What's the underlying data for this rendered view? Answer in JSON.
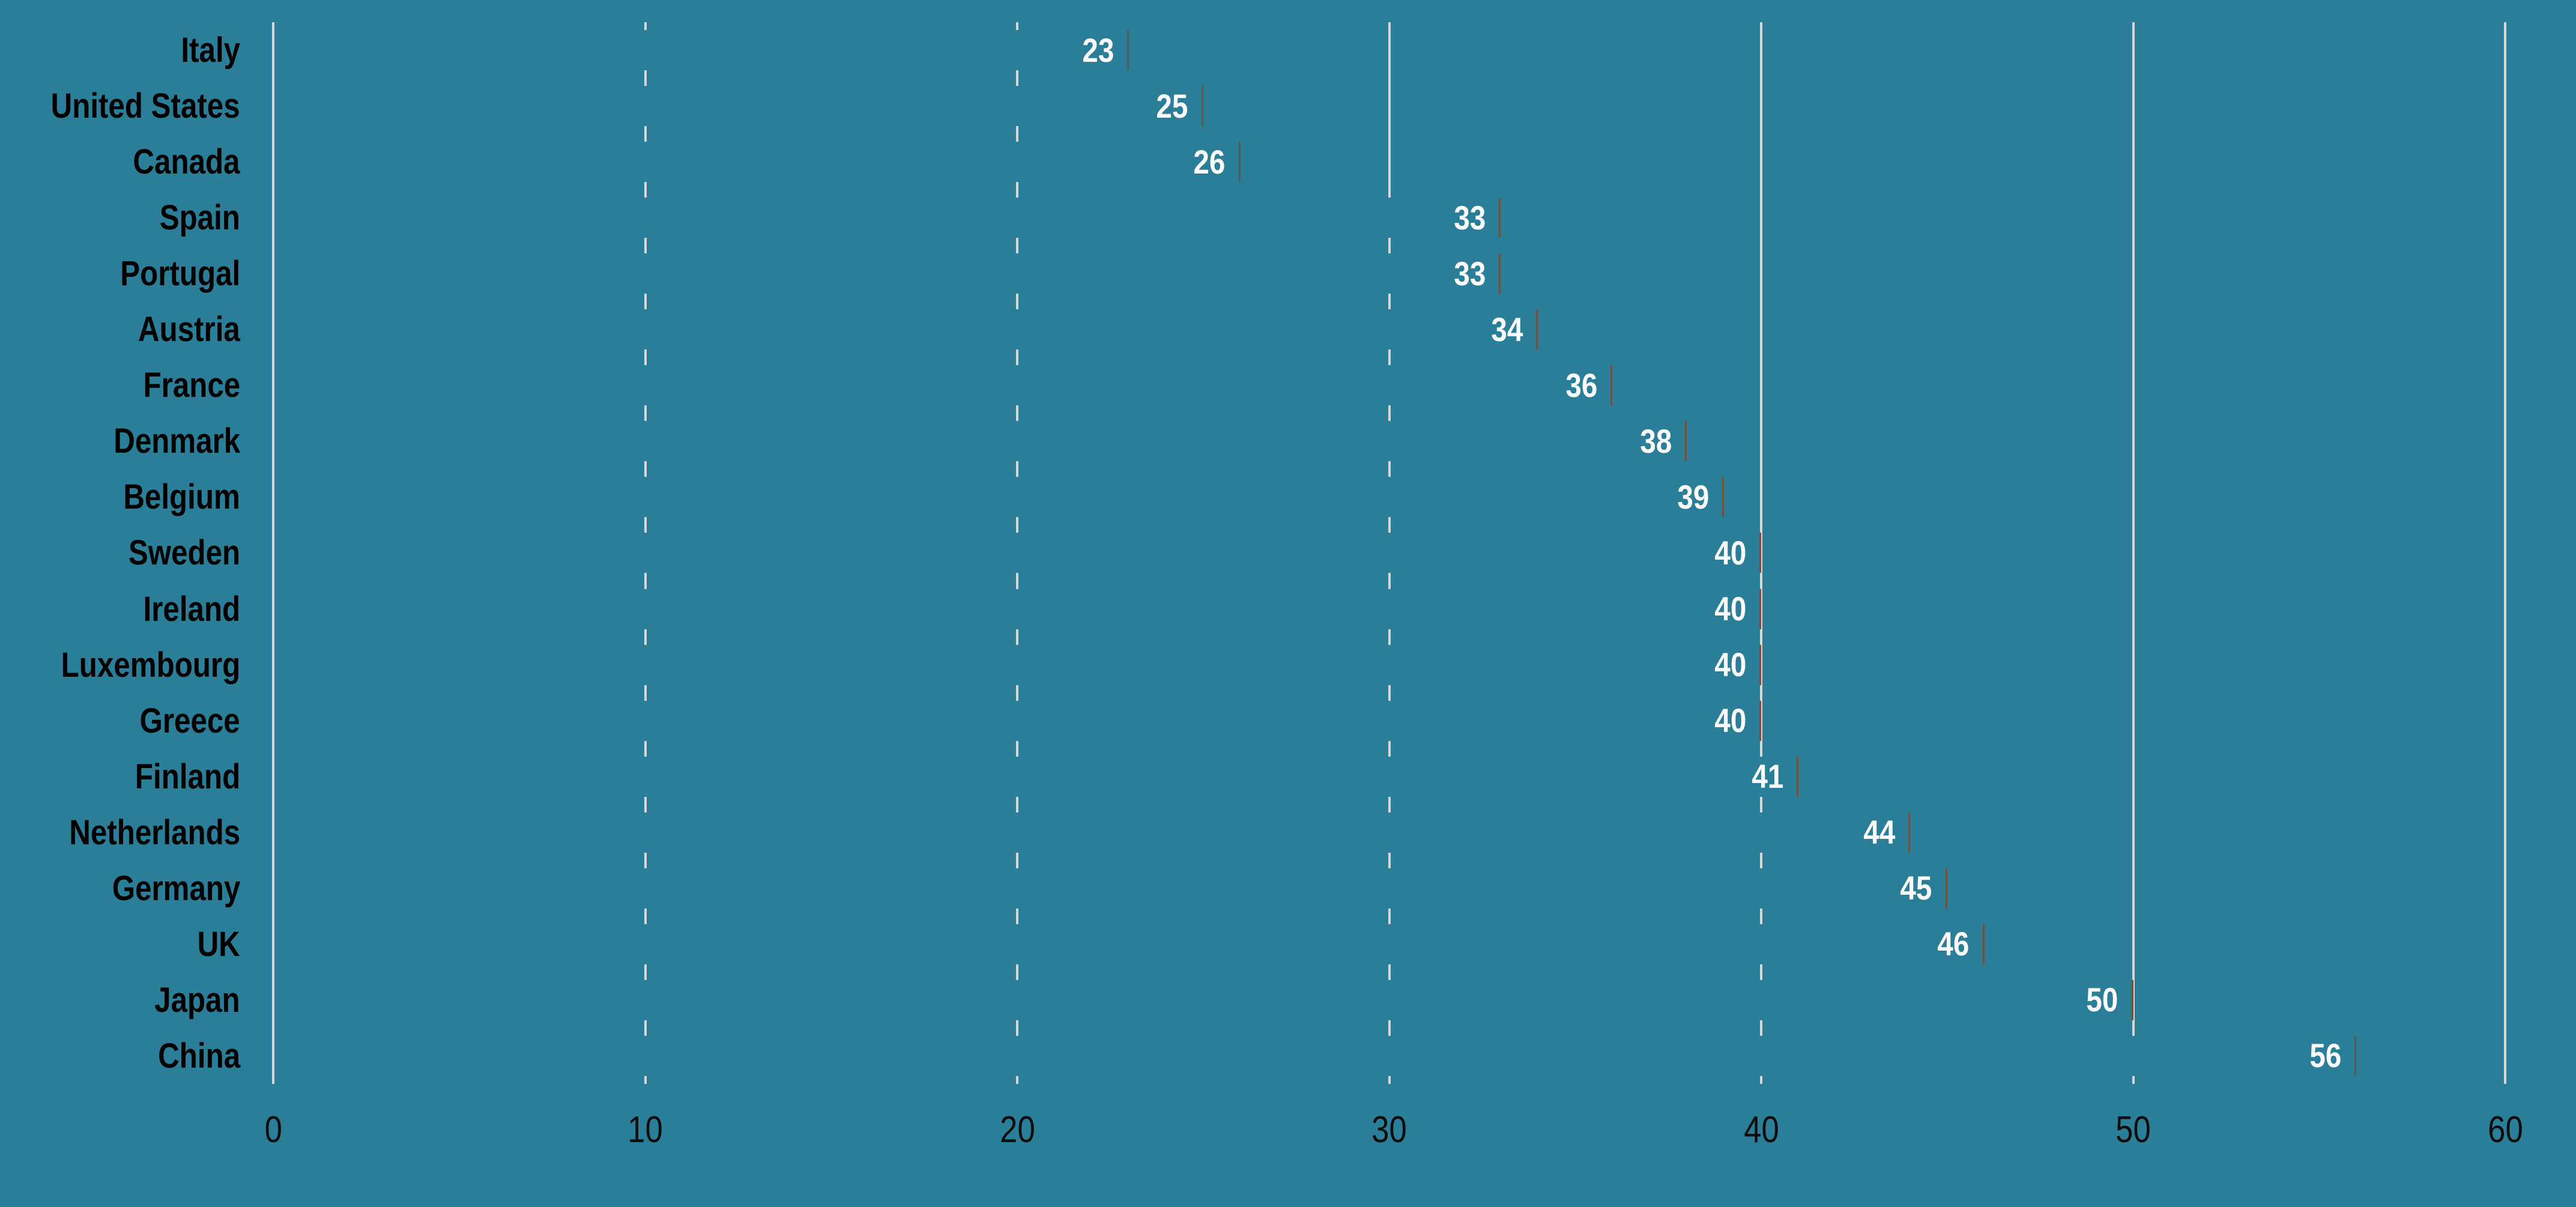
{
  "chart_data": {
    "type": "bar",
    "orientation": "horizontal",
    "title": "",
    "categories": [
      "Italy",
      "United States",
      "Canada",
      "Spain",
      "Portugal",
      "Austria",
      "France",
      "Denmark",
      "Belgium",
      "Sweden",
      "Ireland",
      "Luxembourg",
      "Greece",
      "Finland",
      "Netherlands",
      "Germany",
      "UK",
      "Japan",
      "China"
    ],
    "values": [
      23,
      25,
      26,
      33,
      33,
      34,
      36,
      38,
      39,
      40,
      40,
      40,
      40,
      41,
      44,
      45,
      46,
      50,
      56
    ],
    "value_label_position": "inside-end",
    "x_ticks": [
      "0",
      "10",
      "20",
      "30",
      "40",
      "50",
      "60"
    ],
    "x_tick_values": [
      0,
      10,
      20,
      30,
      40,
      50,
      60
    ],
    "xlim": [
      0,
      62
    ],
    "grid": "vertical-solid-lines-behind-bars",
    "legend": "none",
    "xlabel": "",
    "ylabel": ""
  },
  "colors": {
    "background": "#2b7e98",
    "bar_fill": "#2b7e98",
    "bar_edge": "#6d5248",
    "gridline": "#d6d6d6",
    "axis_line": "#d6d6d6",
    "category_text": "#000000",
    "tick_text": "#0d0d0d",
    "value_text": "#fcfcfc"
  }
}
